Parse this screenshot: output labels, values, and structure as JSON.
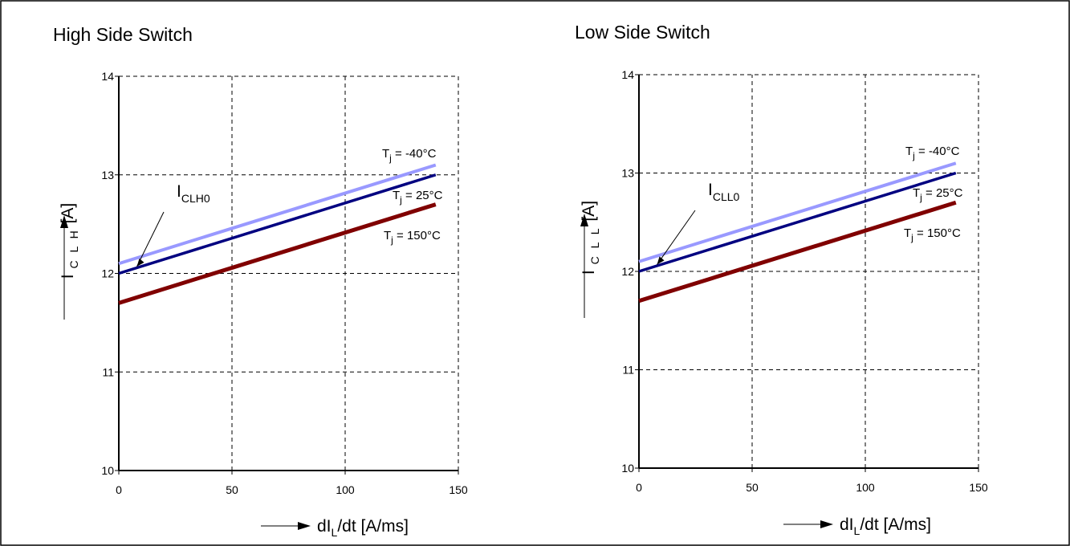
{
  "colors": {
    "Tj_-40": "#9999ff",
    "Tj_25": "#000080",
    "Tj_150": "#800000",
    "grid": "#000000",
    "background": "#ffffff"
  },
  "chart_data": [
    {
      "type": "line",
      "title": "High Side Switch",
      "xlabel": {
        "prefix": "dI",
        "sub": "L",
        "suffix": "/dt [A/ms]"
      },
      "ylabel": {
        "prefix": "I",
        "sub": "CLH",
        "suffix": "[A]"
      },
      "xlim": [
        0,
        150
      ],
      "ylim": [
        10,
        14
      ],
      "xticks": [
        0,
        50,
        100,
        150
      ],
      "xtick_labels": [
        "0",
        "50",
        "100",
        "150"
      ],
      "yticks": [
        10,
        11,
        12,
        13,
        14
      ],
      "ytick_labels": [
        "10",
        "11",
        "12",
        "13",
        "14"
      ],
      "grid": true,
      "series": [
        {
          "name": "Tj_-40",
          "label": {
            "prefix": "T",
            "sub": "j",
            "suffix": " = -40°C"
          },
          "x": [
            0,
            140
          ],
          "y": [
            12.1,
            13.1
          ],
          "color": "#9999ff"
        },
        {
          "name": "Tj_25",
          "label": {
            "prefix": "T",
            "sub": "j",
            "suffix": " = 25°C"
          },
          "x": [
            0,
            140
          ],
          "y": [
            12.0,
            13.0
          ],
          "color": "#000080"
        },
        {
          "name": "Tj_150",
          "label": {
            "prefix": "T",
            "sub": "j",
            "suffix": " = 150°C"
          },
          "x": [
            0,
            140
          ],
          "y": [
            11.7,
            12.7
          ],
          "color": "#800000"
        }
      ],
      "annotation": {
        "prefix": "I",
        "sub": "CLH0",
        "points_to": {
          "x": 8,
          "y": 12.07
        }
      }
    },
    {
      "type": "line",
      "title": "Low Side Switch",
      "xlabel": {
        "prefix": "dI",
        "sub": "L",
        "suffix": "/dt [A/ms]"
      },
      "ylabel": {
        "prefix": "I",
        "sub": "CLL",
        "suffix": "[A]"
      },
      "xlim": [
        0,
        150
      ],
      "ylim": [
        10,
        14
      ],
      "xticks": [
        0,
        50,
        100,
        150
      ],
      "xtick_labels": [
        "0",
        "50",
        "100",
        "150"
      ],
      "yticks": [
        10,
        11,
        12,
        13,
        14
      ],
      "ytick_labels": [
        "10",
        "11",
        "12",
        "13",
        "14"
      ],
      "grid": true,
      "series": [
        {
          "name": "Tj_-40",
          "label": {
            "prefix": "T",
            "sub": "j",
            "suffix": " = -40°C"
          },
          "x": [
            0,
            140
          ],
          "y": [
            12.1,
            13.1
          ],
          "color": "#9999ff"
        },
        {
          "name": "Tj_25",
          "label": {
            "prefix": "T",
            "sub": "j",
            "suffix": " = 25°C"
          },
          "x": [
            0,
            140
          ],
          "y": [
            12.0,
            13.0
          ],
          "color": "#000080"
        },
        {
          "name": "Tj_150",
          "label": {
            "prefix": "T",
            "sub": "j",
            "suffix": " = 150°C"
          },
          "x": [
            0,
            140
          ],
          "y": [
            11.7,
            12.7
          ],
          "color": "#800000"
        }
      ],
      "annotation": {
        "prefix": "I",
        "sub": "CLL0",
        "points_to": {
          "x": 8,
          "y": 12.07
        }
      }
    }
  ]
}
